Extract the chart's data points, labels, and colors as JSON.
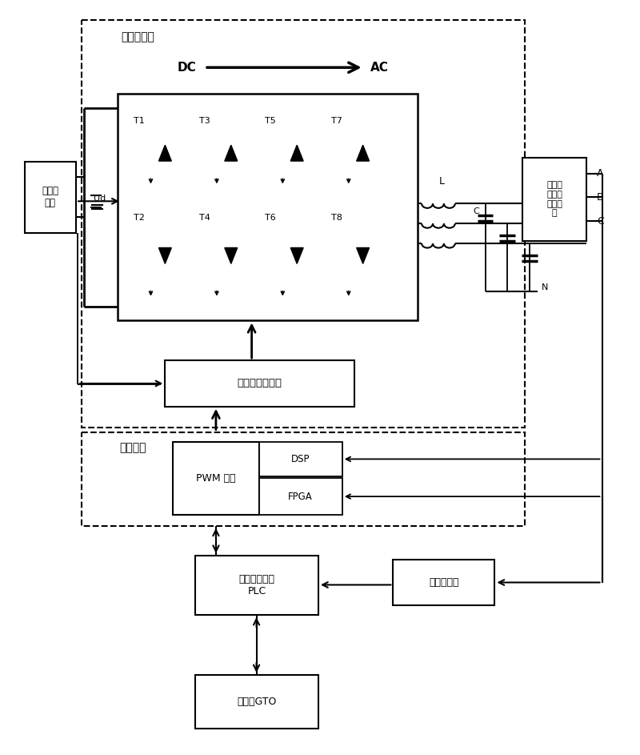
{
  "figsize": [
    8.0,
    9.43
  ],
  "dpi": 100,
  "labels": {
    "main_circuit_unit": "主电路单元",
    "dc": "DC",
    "ac": "AC",
    "voltage_sensor": "电压传\n感器",
    "Ud": "Ud",
    "L": "L",
    "N": "N",
    "C": "C",
    "ac_sensor": "交流电\n压、电\n流传感\n器",
    "A": "A",
    "B": "B",
    "C_label": "C",
    "drive_power_unit": "驱动和功率单元",
    "main_control_unit": "主控单元",
    "pwm_control": "PWM 控制",
    "DSP": "DSP",
    "FPGA": "FPGA",
    "plc": "可编程控制器\nPLC",
    "power_meter": "电力参数表",
    "touch_screen": "触摸屏GTO",
    "T1": "T1",
    "T2": "T2",
    "T3": "T3",
    "T4": "T4",
    "T5": "T5",
    "T6": "T6",
    "T7": "T7",
    "T8": "T8"
  }
}
